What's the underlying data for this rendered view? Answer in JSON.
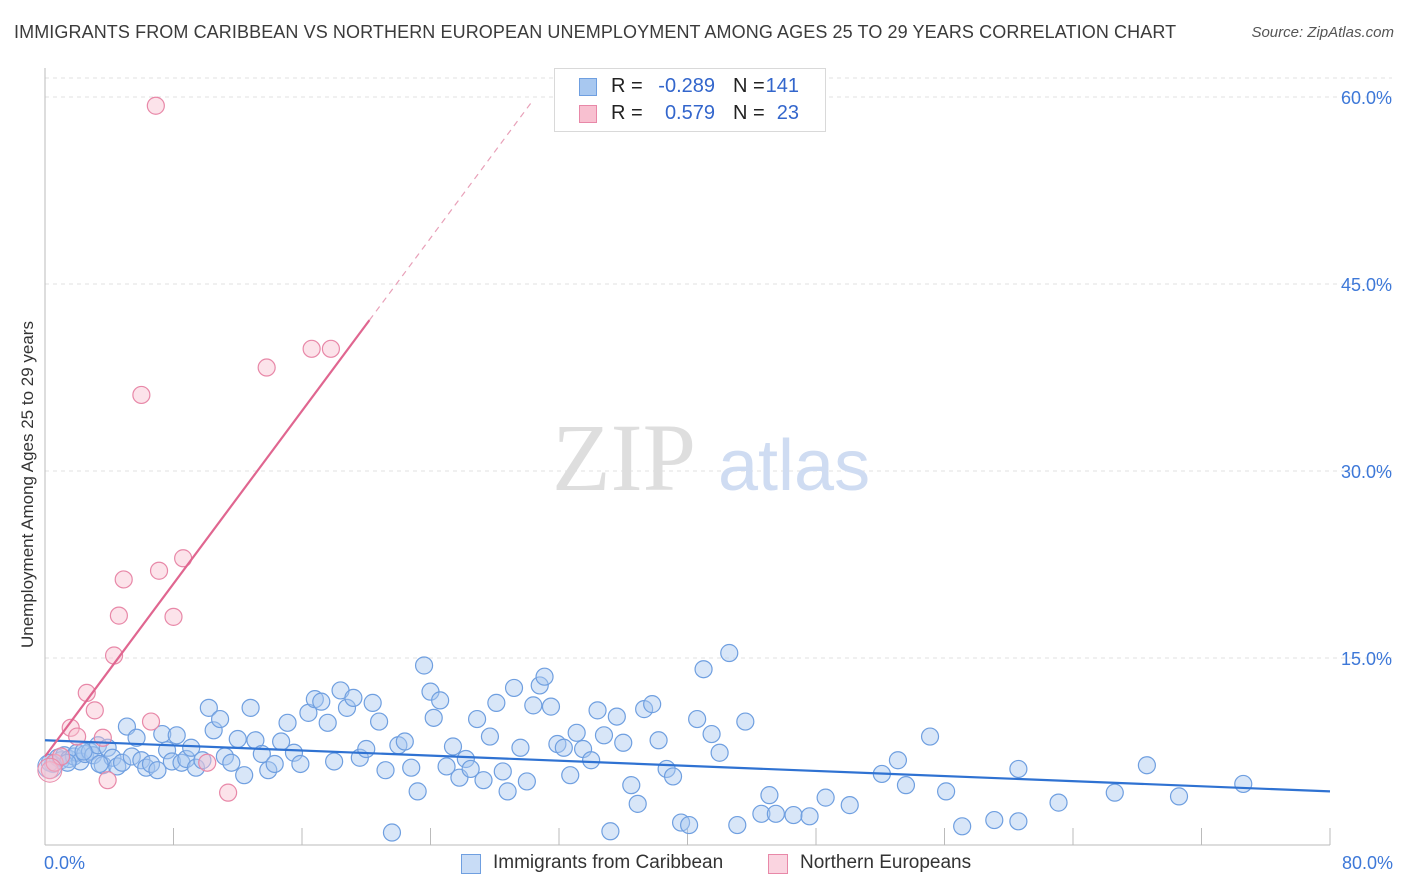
{
  "title": "IMMIGRANTS FROM CARIBBEAN VS NORTHERN EUROPEAN UNEMPLOYMENT AMONG AGES 25 TO 29 YEARS CORRELATION CHART",
  "source": "Source: ZipAtlas.com",
  "watermark": {
    "zip": "ZIP",
    "atlas": "atlas"
  },
  "legend_top": [
    {
      "r_label": "R =",
      "r_value": "-0.289",
      "n_label": "N =",
      "n_value": "141",
      "color": "#a8c8f0",
      "border": "#6f9fe0"
    },
    {
      "r_label": "R =",
      "r_value": "0.579",
      "n_label": "N =",
      "n_value": "23",
      "color": "#f8c0d0",
      "border": "#e888a8"
    }
  ],
  "legend_bottom": [
    {
      "label": "Immigrants from Caribbean",
      "color": "#a8c8f0",
      "border": "#6f9fe0"
    },
    {
      "label": "Northern Europeans",
      "color": "#f8c0d0",
      "border": "#e888a8"
    }
  ],
  "chart_data": {
    "type": "scatter",
    "title": "IMMIGRANTS FROM CARIBBEAN VS NORTHERN EUROPEAN UNEMPLOYMENT AMONG AGES 25 TO 29 YEARS CORRELATION CHART",
    "xlabel": "",
    "ylabel": "Unemployment Among Ages 25 to 29 years",
    "xlim": [
      0,
      80
    ],
    "ylim": [
      0,
      62
    ],
    "x_tick_labels": [
      "0.0%",
      "80.0%"
    ],
    "y_ticks": [
      15,
      30,
      45,
      60
    ],
    "y_tick_labels": [
      "15.0%",
      "30.0%",
      "45.0%",
      "60.0%"
    ],
    "grid": true,
    "series": [
      {
        "name": "Immigrants from Caribbean",
        "color": "#6f9fe0",
        "fill": "#a8c8f0",
        "trend": {
          "x": [
            0,
            80
          ],
          "y": [
            8.4,
            4.3
          ]
        },
        "points": [
          [
            0.5,
            6.5
          ],
          [
            0.8,
            7.0
          ],
          [
            1.0,
            6.8
          ],
          [
            1.2,
            7.2
          ],
          [
            1.5,
            6.9
          ],
          [
            1.8,
            7.1
          ],
          [
            2.0,
            7.4
          ],
          [
            2.2,
            6.7
          ],
          [
            2.5,
            7.3
          ],
          [
            2.8,
            7.5
          ],
          [
            3.0,
            7.2
          ],
          [
            3.3,
            8.0
          ],
          [
            3.6,
            6.4
          ],
          [
            3.9,
            7.8
          ],
          [
            4.2,
            7.0
          ],
          [
            4.5,
            6.3
          ],
          [
            4.8,
            6.6
          ],
          [
            5.1,
            9.5
          ],
          [
            5.4,
            7.1
          ],
          [
            5.7,
            8.6
          ],
          [
            6.0,
            6.8
          ],
          [
            6.3,
            6.2
          ],
          [
            6.6,
            6.5
          ],
          [
            7.0,
            6.0
          ],
          [
            7.3,
            8.9
          ],
          [
            7.6,
            7.6
          ],
          [
            7.9,
            6.7
          ],
          [
            8.2,
            8.8
          ],
          [
            8.5,
            6.6
          ],
          [
            8.8,
            6.9
          ],
          [
            9.1,
            7.8
          ],
          [
            9.4,
            6.2
          ],
          [
            9.8,
            6.8
          ],
          [
            10.2,
            11.0
          ],
          [
            10.5,
            9.2
          ],
          [
            10.9,
            10.1
          ],
          [
            11.2,
            7.1
          ],
          [
            11.6,
            6.6
          ],
          [
            12.0,
            8.5
          ],
          [
            12.4,
            5.6
          ],
          [
            12.8,
            11.0
          ],
          [
            13.1,
            8.4
          ],
          [
            13.5,
            7.3
          ],
          [
            13.9,
            6.0
          ],
          [
            14.3,
            6.5
          ],
          [
            14.7,
            8.3
          ],
          [
            15.1,
            9.8
          ],
          [
            15.5,
            7.4
          ],
          [
            15.9,
            6.5
          ],
          [
            16.4,
            10.6
          ],
          [
            16.8,
            11.7
          ],
          [
            17.2,
            11.5
          ],
          [
            17.6,
            9.8
          ],
          [
            18.0,
            6.7
          ],
          [
            18.4,
            12.4
          ],
          [
            18.8,
            11.0
          ],
          [
            19.2,
            11.8
          ],
          [
            19.6,
            7.0
          ],
          [
            20.0,
            7.7
          ],
          [
            20.4,
            11.4
          ],
          [
            20.8,
            9.9
          ],
          [
            21.2,
            6.0
          ],
          [
            21.6,
            1.0
          ],
          [
            22.0,
            8.0
          ],
          [
            22.4,
            8.3
          ],
          [
            22.8,
            6.2
          ],
          [
            23.2,
            4.3
          ],
          [
            23.6,
            14.4
          ],
          [
            24.0,
            12.3
          ],
          [
            24.2,
            10.2
          ],
          [
            24.6,
            11.6
          ],
          [
            25.0,
            6.3
          ],
          [
            25.4,
            7.9
          ],
          [
            25.8,
            5.4
          ],
          [
            26.2,
            6.9
          ],
          [
            26.5,
            6.1
          ],
          [
            26.9,
            10.1
          ],
          [
            27.3,
            5.2
          ],
          [
            27.7,
            8.7
          ],
          [
            28.1,
            11.4
          ],
          [
            28.5,
            5.9
          ],
          [
            28.8,
            4.3
          ],
          [
            29.2,
            12.6
          ],
          [
            29.6,
            7.8
          ],
          [
            30.0,
            5.1
          ],
          [
            30.4,
            11.2
          ],
          [
            30.8,
            12.8
          ],
          [
            31.1,
            13.5
          ],
          [
            31.5,
            11.1
          ],
          [
            31.9,
            8.1
          ],
          [
            32.3,
            7.8
          ],
          [
            32.7,
            5.6
          ],
          [
            33.1,
            9.0
          ],
          [
            33.5,
            7.7
          ],
          [
            34.0,
            6.8
          ],
          [
            34.4,
            10.8
          ],
          [
            34.8,
            8.8
          ],
          [
            35.2,
            1.1
          ],
          [
            35.6,
            10.3
          ],
          [
            36.0,
            8.2
          ],
          [
            36.5,
            4.8
          ],
          [
            36.9,
            3.3
          ],
          [
            37.3,
            10.9
          ],
          [
            37.8,
            11.3
          ],
          [
            38.2,
            8.4
          ],
          [
            38.7,
            6.1
          ],
          [
            39.1,
            5.5
          ],
          [
            39.6,
            1.8
          ],
          [
            40.1,
            1.6
          ],
          [
            40.6,
            10.1
          ],
          [
            41.0,
            14.1
          ],
          [
            41.5,
            8.9
          ],
          [
            42.0,
            7.4
          ],
          [
            42.6,
            15.4
          ],
          [
            43.1,
            1.6
          ],
          [
            43.6,
            9.9
          ],
          [
            44.6,
            2.5
          ],
          [
            45.1,
            4.0
          ],
          [
            45.5,
            2.5
          ],
          [
            46.6,
            2.4
          ],
          [
            47.6,
            2.3
          ],
          [
            48.6,
            3.8
          ],
          [
            50.1,
            3.2
          ],
          [
            52.1,
            5.7
          ],
          [
            53.1,
            6.8
          ],
          [
            53.6,
            4.8
          ],
          [
            55.1,
            8.7
          ],
          [
            56.1,
            4.3
          ],
          [
            57.1,
            1.5
          ],
          [
            59.1,
            2.0
          ],
          [
            60.6,
            6.1
          ],
          [
            60.6,
            1.9
          ],
          [
            63.1,
            3.4
          ],
          [
            66.6,
            4.2
          ],
          [
            68.6,
            6.4
          ],
          [
            70.6,
            3.9
          ],
          [
            74.6,
            4.9
          ],
          [
            0.3,
            6.6
          ],
          [
            1.4,
            6.6
          ],
          [
            2.4,
            7.5
          ],
          [
            3.4,
            6.5
          ]
        ]
      },
      {
        "name": "Northern Europeans",
        "color": "#e888a8",
        "fill": "#f8c0d0",
        "trend": {
          "x": [
            0,
            20.2
          ],
          "y": [
            7.1,
            42.1
          ]
        },
        "trend_dashed": {
          "x": [
            20.2,
            30.3
          ],
          "y": [
            42.1,
            59.6
          ]
        },
        "points": [
          [
            0.3,
            6.0
          ],
          [
            0.6,
            6.6
          ],
          [
            1.0,
            7.1
          ],
          [
            1.6,
            9.4
          ],
          [
            2.0,
            8.7
          ],
          [
            2.6,
            12.2
          ],
          [
            3.1,
            10.8
          ],
          [
            3.6,
            8.6
          ],
          [
            3.9,
            5.2
          ],
          [
            4.3,
            15.2
          ],
          [
            4.6,
            18.4
          ],
          [
            4.9,
            21.3
          ],
          [
            6.0,
            36.1
          ],
          [
            6.6,
            9.9
          ],
          [
            6.9,
            59.3
          ],
          [
            7.1,
            22.0
          ],
          [
            8.0,
            18.3
          ],
          [
            8.6,
            23.0
          ],
          [
            10.1,
            6.6
          ],
          [
            11.4,
            4.2
          ],
          [
            13.8,
            38.3
          ],
          [
            16.6,
            39.8
          ],
          [
            17.8,
            39.8
          ]
        ]
      }
    ]
  }
}
